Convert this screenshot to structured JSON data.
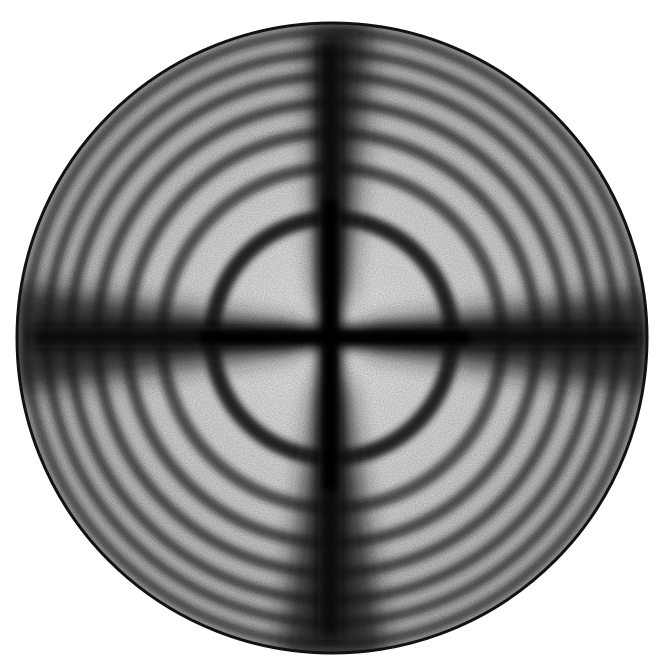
{
  "figure": {
    "subject": "conoscopic-interference-figure",
    "ring_count": 7,
    "has_isogyre_cross": true,
    "colors": {
      "background": "#ffffff",
      "ring_dark": "#1a1a1a",
      "field_light": "#f4f4f4",
      "outline": "#111111"
    }
  }
}
